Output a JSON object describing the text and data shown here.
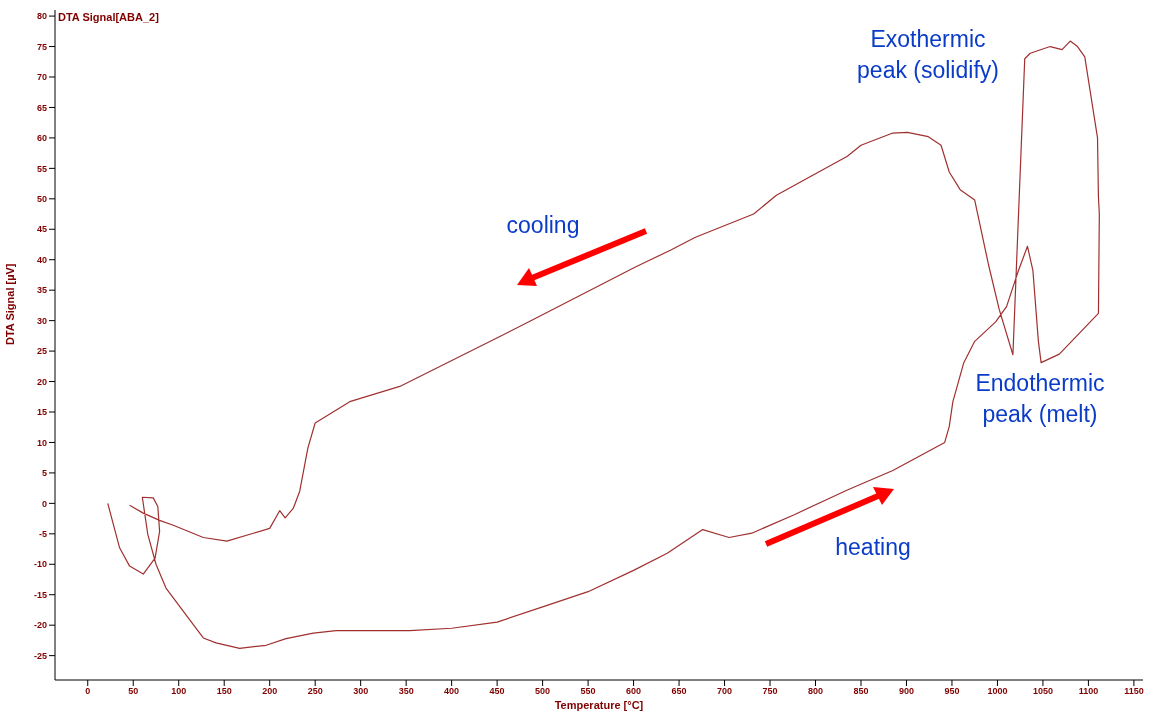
{
  "chart_data": {
    "type": "line",
    "title": "DTA Signal[ABA_2]",
    "xlabel": "Temperature  [°C]",
    "ylabel": "DTA Signal  [µV]",
    "xlim": [
      -36,
      1160
    ],
    "ylim": [
      -29,
      81
    ],
    "xticks": [
      0,
      50,
      100,
      150,
      200,
      250,
      300,
      350,
      400,
      450,
      500,
      550,
      600,
      650,
      700,
      750,
      800,
      850,
      900,
      950,
      1000,
      1050,
      1100,
      1150
    ],
    "yticks": [
      -25,
      -20,
      -15,
      -10,
      -5,
      0,
      5,
      10,
      15,
      20,
      25,
      30,
      35,
      40,
      45,
      50,
      55,
      60,
      65,
      70,
      75,
      80
    ],
    "marker": "none",
    "line_style": "solid",
    "series": [
      {
        "color": "#a03030",
        "x": [
          22,
          35,
          46,
          61,
          74,
          79,
          77,
          72,
          60,
          66,
          75,
          86,
          108,
          127,
          141,
          167,
          196,
          218,
          248,
          273,
          354,
          400,
          450,
          500,
          550,
          600,
          637,
          676,
          705,
          730,
          776,
          835,
          885,
          942,
          947,
          951,
          963,
          975,
          998,
          1010,
          1023,
          1033,
          1039,
          1045,
          1048,
          1068,
          1111,
          1112,
          1111,
          1110,
          1096,
          1088,
          1080,
          1071,
          1058,
          1036,
          1030,
          1017,
          1002,
          990,
          975,
          959,
          947,
          938,
          924,
          901,
          885,
          850,
          835,
          796,
          757,
          732,
          668,
          641,
          602,
          563,
          486,
          453,
          398,
          343,
          288,
          250,
          242,
          233,
          226,
          217,
          211,
          200,
          182,
          153,
          127,
          94,
          79,
          61,
          46
        ],
        "values": [
          0,
          -7.3,
          -10.3,
          -11.6,
          -9,
          -4.6,
          -0.5,
          0.9,
          1,
          -5.1,
          -10,
          -13.9,
          -18.3,
          -22.1,
          -22.9,
          -23.8,
          -23.3,
          -22.2,
          -21.3,
          -20.9,
          -20.9,
          -20.5,
          -19.5,
          -17,
          -14.5,
          -11,
          -8.2,
          -4.3,
          -5.6,
          -4.9,
          -1.9,
          2.2,
          5.4,
          10,
          12.6,
          16.7,
          23.1,
          26.6,
          29.8,
          32.3,
          38.2,
          42.2,
          38.2,
          26.6,
          23.1,
          24.5,
          31.2,
          47.5,
          50.3,
          60,
          73.3,
          75,
          75.9,
          74.5,
          75,
          73.9,
          73,
          24.4,
          31.8,
          39.3,
          49.8,
          51.5,
          54.4,
          58.8,
          60.2,
          60.9,
          60.8,
          58.8,
          57,
          53.8,
          50.6,
          47.5,
          43.7,
          41.6,
          38.8,
          35.8,
          29.9,
          27.4,
          23.3,
          19.2,
          16.7,
          13.2,
          9.1,
          2,
          -0.8,
          -2.4,
          -1.2,
          -4.1,
          -4.9,
          -6.2,
          -5.6,
          -3.6,
          -2.8,
          -1.6,
          -0.3
        ]
      }
    ],
    "annotations": [
      "Exothermic peak (solidify)",
      "Endothermic peak (melt)",
      "cooling",
      "heating"
    ]
  }
}
